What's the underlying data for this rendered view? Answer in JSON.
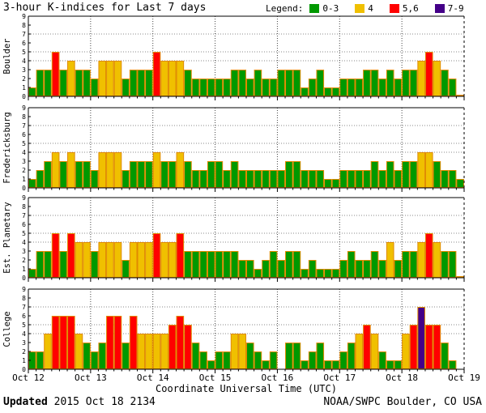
{
  "title": "3-hour K-indices for Last 7 days",
  "legend": {
    "label": "Legend:",
    "items": [
      {
        "label": "0-3",
        "color": "#009900"
      },
      {
        "label": "4",
        "color": "#F0C000"
      },
      {
        "label": "5,6",
        "color": "#FF0000"
      },
      {
        "label": "7-9",
        "color": "#440088"
      }
    ]
  },
  "footer": {
    "updated_label": "Updated",
    "updated_value": " 2015 Oct 18 2134",
    "source": "NOAA/SWPC Boulder, CO USA"
  },
  "chart_data": {
    "type": "bar",
    "title": "3-hour K-indices for Last 7 days",
    "xlabel": "Coordinate Universal Time (UTC)",
    "x_tick_labels": [
      "Oct 12",
      "Oct 13",
      "Oct 14",
      "Oct 15",
      "Oct 16",
      "Oct 17",
      "Oct 18",
      "Oct 19"
    ],
    "ylim": [
      0,
      9
    ],
    "y_tick_labels": [
      0,
      1,
      2,
      3,
      4,
      5,
      6,
      7,
      8,
      9
    ],
    "y_gridlines": [
      4,
      5,
      7
    ],
    "bars_per_day": 8,
    "hours_per_bar": 3,
    "grid": true,
    "legend_position": "top-right",
    "colors": {
      "green": "#009900",
      "yellow": "#F0C000",
      "red": "#FF0000",
      "purple": "#440088",
      "outline": "#E08A00"
    },
    "k_color_rule": [
      {
        "color": "green",
        "min": 0,
        "max": 3
      },
      {
        "color": "yellow",
        "min": 4,
        "max": 4
      },
      {
        "color": "red",
        "min": 5,
        "max": 6
      },
      {
        "color": "purple",
        "min": 7,
        "max": 9
      }
    ],
    "panels": [
      {
        "station": "Boulder",
        "k_values": [
          1,
          3,
          3,
          5,
          3,
          4,
          3,
          3,
          2,
          4,
          4,
          4,
          2,
          3,
          3,
          3,
          5,
          4,
          4,
          4,
          3,
          2,
          2,
          2,
          2,
          2,
          3,
          3,
          2,
          3,
          2,
          2,
          3,
          3,
          3,
          1,
          2,
          3,
          1,
          1,
          2,
          2,
          2,
          3,
          3,
          2,
          3,
          2,
          3,
          3,
          4,
          5,
          4,
          3,
          2,
          0
        ]
      },
      {
        "station": "Fredericksburg",
        "k_values": [
          1,
          2,
          3,
          4,
          3,
          4,
          3,
          3,
          2,
          4,
          4,
          4,
          2,
          3,
          3,
          3,
          4,
          3,
          3,
          4,
          3,
          2,
          2,
          3,
          3,
          2,
          3,
          2,
          2,
          2,
          2,
          2,
          2,
          3,
          3,
          2,
          2,
          2,
          1,
          1,
          2,
          2,
          2,
          2,
          3,
          2,
          3,
          2,
          3,
          3,
          4,
          4,
          3,
          2,
          2,
          1
        ]
      },
      {
        "station": "Est. Planetary",
        "k_values": [
          1,
          3,
          3,
          5,
          3,
          5,
          4,
          4,
          3,
          4,
          4,
          4,
          2,
          4,
          4,
          4,
          5,
          4,
          4,
          5,
          3,
          3,
          3,
          3,
          3,
          3,
          3,
          2,
          2,
          1,
          2,
          3,
          2,
          3,
          3,
          1,
          2,
          1,
          1,
          1,
          2,
          3,
          2,
          2,
          3,
          2,
          4,
          2,
          3,
          3,
          4,
          5,
          4,
          3,
          3,
          0
        ]
      },
      {
        "station": "College",
        "k_values": [
          2,
          2,
          4,
          6,
          6,
          6,
          4,
          3,
          2,
          3,
          6,
          6,
          3,
          6,
          4,
          4,
          4,
          4,
          5,
          6,
          5,
          3,
          2,
          1,
          2,
          2,
          4,
          4,
          3,
          2,
          1,
          2,
          null,
          3,
          3,
          1,
          2,
          3,
          1,
          1,
          2,
          3,
          4,
          5,
          4,
          2,
          1,
          1,
          4,
          5,
          7,
          5,
          5,
          3,
          1,
          null
        ]
      }
    ]
  }
}
